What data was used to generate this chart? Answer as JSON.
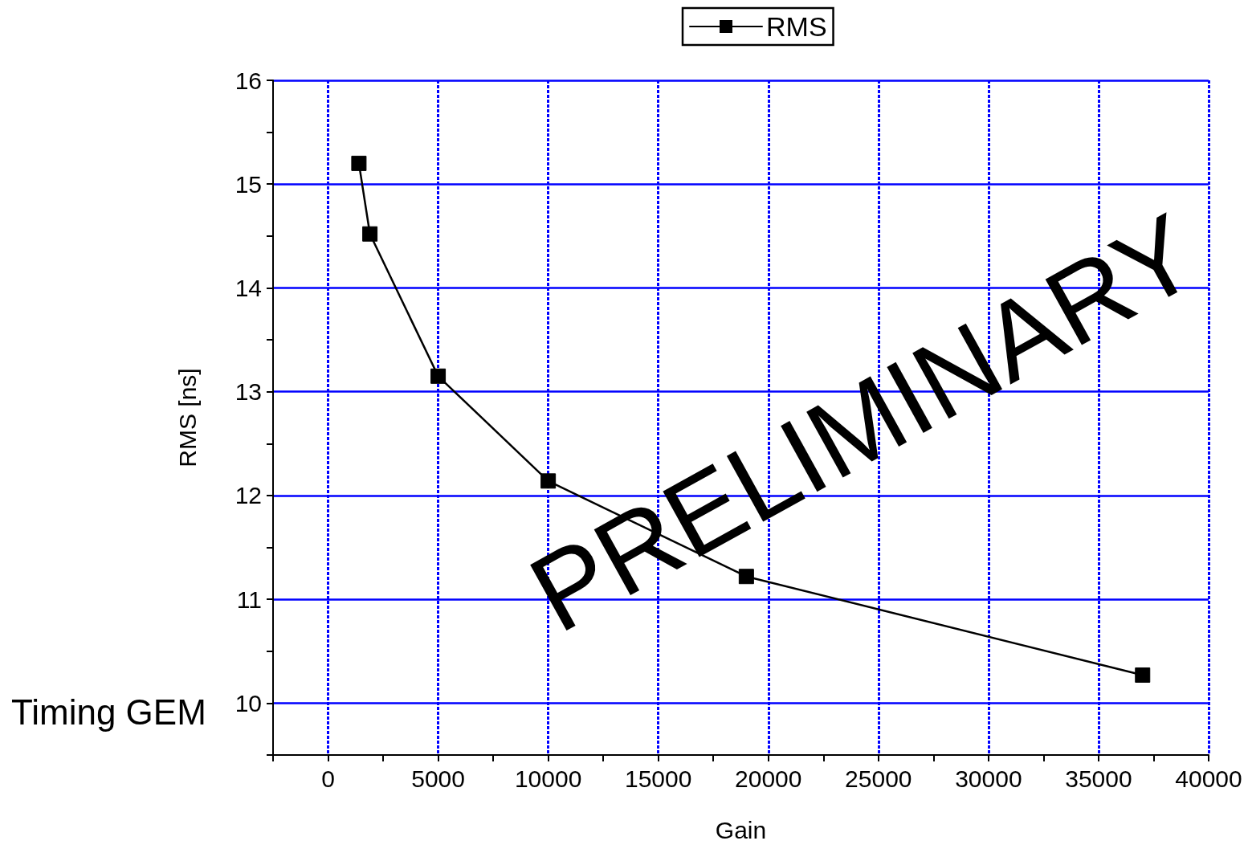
{
  "chart_data": {
    "type": "line",
    "xlabel": "Gain",
    "ylabel": "RMS [ns]",
    "xlim": [
      -2500,
      40000
    ],
    "ylim": [
      9.5,
      16
    ],
    "xticks": [
      {
        "value": -2500,
        "label": null
      },
      0,
      {
        "value": 2500,
        "label": null
      },
      5000,
      {
        "value": 7500,
        "label": null
      },
      10000,
      {
        "value": 12500,
        "label": null
      },
      15000,
      {
        "value": 17500,
        "label": null
      },
      20000,
      {
        "value": 22500,
        "label": null
      },
      25000,
      {
        "value": 27500,
        "label": null
      },
      30000,
      {
        "value": 32500,
        "label": null
      },
      35000,
      {
        "value": 37500,
        "label": null
      },
      40000
    ],
    "yticks": [
      {
        "value": 9.5,
        "label": null
      },
      10,
      {
        "value": 10.5,
        "label": null
      },
      11,
      {
        "value": 11.5,
        "label": null
      },
      12,
      {
        "value": 12.5,
        "label": null
      },
      13,
      {
        "value": 13.5,
        "label": null
      },
      14,
      {
        "value": 14.5,
        "label": null
      },
      15,
      {
        "value": 15.5,
        "label": null
      },
      16
    ],
    "x": [
      1400,
      1900,
      5000,
      10000,
      19000,
      37000
    ],
    "series": [
      {
        "name": "RMS",
        "color": "#000000",
        "values": [
          15.2,
          14.52,
          13.15,
          12.14,
          11.22,
          10.27
        ]
      }
    ],
    "grid": true,
    "legend": "top",
    "marker": "square",
    "line_style": "solid",
    "annotations": [
      "PRELIMINARY",
      "Timing GEM"
    ]
  }
}
